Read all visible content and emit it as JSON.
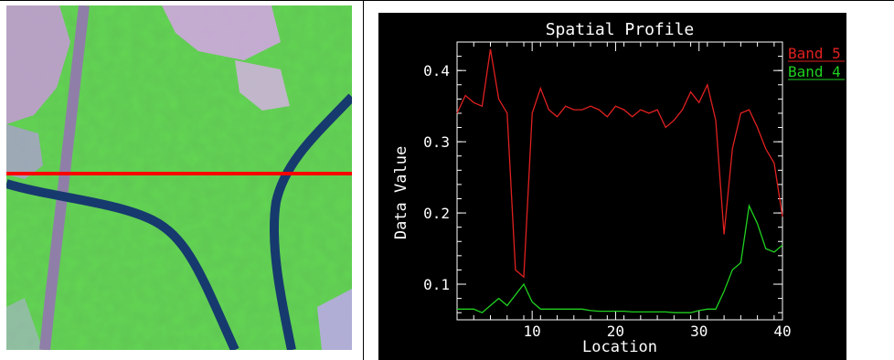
{
  "image_panel": {
    "description_icon": "satellite-image",
    "profile_line_color": "#ff0000"
  },
  "colors": {
    "background": "#000000",
    "axis": "#ffffff",
    "band5": "#e02020",
    "band4": "#20d020"
  },
  "chart_data": {
    "type": "line",
    "title": "Spatial Profile",
    "xlabel": "Location",
    "ylabel": "Data Value",
    "xlim": [
      1,
      40
    ],
    "ylim": [
      0.05,
      0.44
    ],
    "x_ticks": [
      10,
      20,
      30,
      40
    ],
    "x_tick_labels": [
      "10",
      "20",
      "30",
      "40"
    ],
    "y_ticks": [
      0.1,
      0.2,
      0.3,
      0.4
    ],
    "y_tick_labels": [
      "0.1",
      "0.2",
      "0.3",
      "0.4"
    ],
    "legend_position": "top-right",
    "x": [
      1,
      2,
      3,
      4,
      5,
      6,
      7,
      8,
      9,
      10,
      11,
      12,
      13,
      14,
      15,
      16,
      17,
      18,
      19,
      20,
      21,
      22,
      23,
      24,
      25,
      26,
      27,
      28,
      29,
      30,
      31,
      32,
      33,
      34,
      35,
      36,
      37,
      38,
      39,
      40
    ],
    "series": [
      {
        "name": "Band 5",
        "color": "#e02020",
        "values": [
          0.34,
          0.365,
          0.355,
          0.35,
          0.43,
          0.36,
          0.34,
          0.12,
          0.11,
          0.34,
          0.375,
          0.345,
          0.335,
          0.35,
          0.345,
          0.345,
          0.35,
          0.345,
          0.335,
          0.35,
          0.345,
          0.335,
          0.345,
          0.34,
          0.345,
          0.32,
          0.33,
          0.345,
          0.37,
          0.355,
          0.38,
          0.33,
          0.17,
          0.29,
          0.34,
          0.345,
          0.32,
          0.29,
          0.27,
          0.195
        ]
      },
      {
        "name": "Band 4",
        "color": "#20d020",
        "values": [
          0.065,
          0.065,
          0.065,
          0.06,
          0.07,
          0.08,
          0.07,
          0.085,
          0.1,
          0.075,
          0.065,
          0.065,
          0.065,
          0.065,
          0.065,
          0.065,
          0.063,
          0.062,
          0.062,
          0.062,
          0.062,
          0.061,
          0.061,
          0.061,
          0.061,
          0.061,
          0.06,
          0.06,
          0.06,
          0.063,
          0.065,
          0.065,
          0.09,
          0.12,
          0.13,
          0.21,
          0.185,
          0.15,
          0.145,
          0.155
        ]
      }
    ]
  }
}
